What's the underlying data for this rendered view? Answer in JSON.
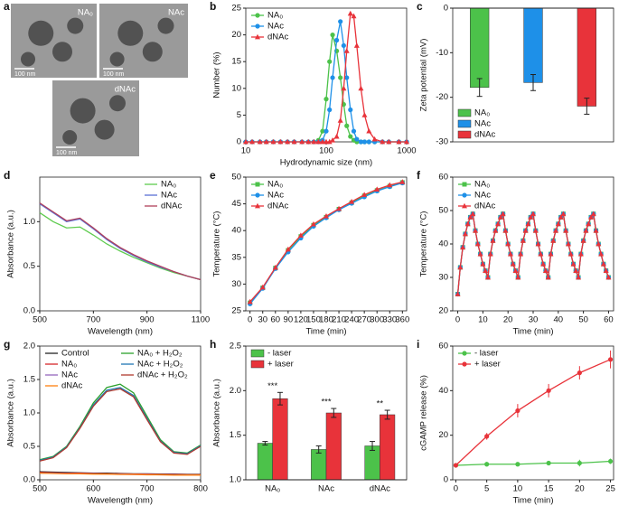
{
  "chart_data": [
    {
      "type": "image",
      "panel": "a",
      "images": [
        {
          "label": "NA₀",
          "scale": "100 nm"
        },
        {
          "label": "NAc",
          "scale": "100 nm"
        },
        {
          "label": "dNAc",
          "scale": "100 nm"
        }
      ]
    },
    {
      "type": "line",
      "panel": "b",
      "xlabel": "Hydrodynamic size (nm)",
      "ylabel": "Number (%)",
      "xlog": true,
      "xlim": [
        10,
        1000
      ],
      "xticks": [
        10,
        100,
        1000
      ],
      "ylim": [
        0,
        25
      ],
      "yticks": [
        0,
        5,
        10,
        15,
        20,
        25
      ],
      "legend": "upper left",
      "x": [
        10,
        12,
        15,
        18,
        22,
        27,
        33,
        40,
        50,
        60,
        70,
        80,
        90,
        100,
        110,
        120,
        135,
        150,
        165,
        180,
        200,
        220,
        240,
        270,
        300,
        340,
        400,
        500,
        600,
        800,
        1000
      ],
      "series": [
        {
          "name": "NA₀",
          "color": "#4cc24a",
          "marker": "circle",
          "values": [
            0,
            0,
            0,
            0,
            0,
            0,
            0,
            0,
            0,
            0,
            0,
            0.3,
            2,
            8,
            15,
            20,
            17,
            12,
            7,
            3,
            1,
            0.3,
            0,
            0,
            0,
            0,
            0,
            0,
            0,
            0,
            0
          ]
        },
        {
          "name": "NAc",
          "color": "#1e90e8",
          "marker": "circle",
          "values": [
            0,
            0,
            0,
            0,
            0,
            0,
            0,
            0,
            0,
            0,
            0,
            0,
            0.3,
            2,
            6,
            12,
            19,
            22.5,
            18,
            12,
            6,
            2,
            0.5,
            0,
            0,
            0,
            0,
            0,
            0,
            0,
            0
          ]
        },
        {
          "name": "dNAc",
          "color": "#e8333a",
          "marker": "triangle",
          "values": [
            0,
            0,
            0,
            0,
            0,
            0,
            0,
            0,
            0,
            0,
            0,
            0,
            0,
            0,
            0,
            0.3,
            1,
            4,
            10,
            17,
            24,
            23.5,
            18,
            10,
            5,
            2,
            0.5,
            0,
            0,
            0,
            0
          ]
        }
      ]
    },
    {
      "type": "bar",
      "panel": "c",
      "ylabel": "Zeta potential (mV)",
      "ylim": [
        -30,
        0
      ],
      "yticks": [
        -30,
        -20,
        -10,
        0
      ],
      "legend": "lower left",
      "series": [
        {
          "name": "NA₀",
          "color": "#4cc24a",
          "values": [
            -17.8
          ],
          "errors": [
            2
          ]
        },
        {
          "name": "NAc",
          "color": "#1e90e8",
          "values": [
            -16.7
          ],
          "errors": [
            1.8
          ]
        },
        {
          "name": "dNAc",
          "color": "#e8333a",
          "values": [
            -22
          ],
          "errors": [
            1.8
          ]
        }
      ]
    },
    {
      "type": "line",
      "panel": "d",
      "xlabel": "Wavelength (nm)",
      "ylabel": "Absorbance (a.u.)",
      "xlim": [
        500,
        1100
      ],
      "xticks": [
        500,
        700,
        900,
        1100
      ],
      "ylim": [
        0,
        1.5
      ],
      "yticks": [
        {
          "value": 0,
          "label": "0.0"
        },
        {
          "value": 0.5,
          "label": "0.5"
        },
        {
          "value": 1,
          "label": "1.0"
        }
      ],
      "legend": "upper right",
      "x": [
        500,
        550,
        600,
        650,
        700,
        750,
        800,
        850,
        900,
        950,
        1000,
        1050,
        1100
      ],
      "series": [
        {
          "name": "NA₀",
          "color": "#5ecb4e",
          "values": [
            1.1,
            1.0,
            0.93,
            0.94,
            0.85,
            0.75,
            0.67,
            0.6,
            0.54,
            0.48,
            0.43,
            0.39,
            0.35
          ]
        },
        {
          "name": "NAc",
          "color": "#5b6fd6",
          "values": [
            1.2,
            1.1,
            1.0,
            1.03,
            0.92,
            0.8,
            0.7,
            0.62,
            0.55,
            0.49,
            0.44,
            0.39,
            0.35
          ]
        },
        {
          "name": "dNAc",
          "color": "#b0405a",
          "values": [
            1.21,
            1.11,
            1.01,
            1.04,
            0.93,
            0.81,
            0.71,
            0.63,
            0.56,
            0.5,
            0.44,
            0.39,
            0.35
          ]
        }
      ]
    },
    {
      "type": "line",
      "panel": "e",
      "xlabel": "Time (min)",
      "ylabel": "Temperature (°C)",
      "xlim": [
        -10,
        370
      ],
      "xticks": [
        0,
        30,
        60,
        90,
        120,
        150,
        180,
        210,
        240,
        270,
        300,
        330,
        360
      ],
      "ylim": [
        25,
        50
      ],
      "yticks": [
        25,
        30,
        35,
        40,
        45,
        50
      ],
      "legend": "upper left",
      "x": [
        0,
        30,
        60,
        90,
        120,
        150,
        180,
        210,
        240,
        270,
        300,
        330,
        360
      ],
      "series": [
        {
          "name": "NA₀",
          "color": "#4cc24a",
          "marker": "square",
          "values": [
            26.5,
            29.3,
            33,
            36.3,
            38.9,
            41,
            42.5,
            44,
            45.2,
            46.5,
            47.5,
            48.3,
            49
          ]
        },
        {
          "name": "NAc",
          "color": "#1e90e8",
          "marker": "circle",
          "values": [
            26.3,
            29.2,
            32.9,
            36,
            38.6,
            40.8,
            42.4,
            43.9,
            45.1,
            46.3,
            47.4,
            48.2,
            48.9
          ]
        },
        {
          "name": "dNAc",
          "color": "#e8333a",
          "marker": "triangle",
          "values": [
            26.7,
            29.4,
            33.1,
            36.5,
            39.1,
            41.2,
            42.7,
            44.1,
            45.4,
            46.7,
            47.7,
            48.5,
            49.1
          ]
        }
      ]
    },
    {
      "type": "line",
      "panel": "f",
      "xlabel": "Time (min)",
      "ylabel": "Temperature (°C)",
      "xlim": [
        -2,
        62
      ],
      "xticks": [
        0,
        10,
        20,
        30,
        40,
        50,
        60
      ],
      "ylim": [
        20,
        60
      ],
      "yticks": [
        20,
        30,
        40,
        50,
        60
      ],
      "legend": "upper left",
      "x": [
        0,
        1,
        2,
        3,
        4,
        5,
        6,
        7,
        8,
        9,
        10,
        11,
        12,
        13,
        14,
        15,
        16,
        17,
        18,
        19,
        20,
        21,
        22,
        23,
        24,
        25,
        26,
        27,
        28,
        29,
        30,
        31,
        32,
        33,
        34,
        35,
        36,
        37,
        38,
        39,
        40,
        41,
        42,
        43,
        44,
        45,
        46,
        47,
        48,
        49,
        50,
        51,
        52,
        53,
        54,
        55,
        56,
        57,
        58,
        59,
        60
      ],
      "series": [
        {
          "name": "NA₀",
          "color": "#4cc24a",
          "marker": "square",
          "values": [
            25,
            33,
            39,
            43,
            46,
            48,
            49,
            44,
            40,
            37,
            34,
            32,
            30,
            37,
            41,
            44,
            46,
            48,
            49,
            44,
            40,
            37,
            34,
            32,
            30,
            37,
            41,
            44,
            46,
            48,
            49,
            44,
            40,
            37,
            34,
            32,
            30,
            37,
            41,
            44,
            46,
            48,
            49,
            44,
            40,
            37,
            34,
            32,
            30,
            37,
            41,
            44,
            46,
            48,
            49,
            44,
            40,
            37,
            34,
            32,
            30
          ]
        },
        {
          "name": "NAc",
          "color": "#1e90e8",
          "marker": "circle",
          "values": [
            25,
            33,
            39,
            43,
            46,
            48,
            49,
            44,
            40,
            37,
            34,
            32,
            30,
            37,
            41,
            44,
            46,
            48,
            49,
            44,
            40,
            37,
            34,
            32,
            30,
            37,
            41,
            44,
            46,
            48,
            49,
            44,
            40,
            37,
            34,
            32,
            30,
            37,
            41,
            44,
            46,
            48,
            49,
            44,
            40,
            37,
            34,
            32,
            30,
            37,
            41,
            44,
            46,
            48,
            49,
            44,
            40,
            37,
            34,
            32,
            30
          ]
        },
        {
          "name": "dNAc",
          "color": "#e8333a",
          "marker": "triangle",
          "values": [
            25,
            33,
            39,
            43,
            46,
            48,
            49,
            44,
            40,
            37,
            34,
            32,
            30,
            37,
            41,
            44,
            46,
            48,
            49,
            44,
            40,
            37,
            34,
            32,
            30,
            37,
            41,
            44,
            46,
            48,
            49,
            44,
            40,
            37,
            34,
            32,
            30,
            37,
            41,
            44,
            46,
            48,
            49,
            44,
            40,
            37,
            34,
            32,
            30,
            37,
            41,
            44,
            46,
            48,
            49,
            44,
            40,
            37,
            34,
            32,
            30
          ]
        }
      ]
    },
    {
      "type": "line",
      "panel": "g",
      "xlabel": "Wavelength (nm)",
      "ylabel": "Absorbance (a.u.)",
      "xlim": [
        500,
        800
      ],
      "xticks": [
        500,
        600,
        700,
        800
      ],
      "ylim": [
        0,
        2
      ],
      "yticks": [
        {
          "value": 0,
          "label": "0.0"
        },
        {
          "value": 0.5,
          "label": "0.5"
        },
        {
          "value": 1,
          "label": "1.0"
        },
        {
          "value": 1.5,
          "label": "1.5"
        },
        {
          "value": 2,
          "label": "2.0"
        }
      ],
      "legend": "upper left",
      "x": [
        500,
        525,
        550,
        575,
        600,
        625,
        650,
        675,
        700,
        725,
        750,
        775,
        800
      ],
      "series": [
        {
          "name": "Control",
          "color": "#222222",
          "values": [
            0.12,
            0.115,
            0.11,
            0.105,
            0.1,
            0.1,
            0.095,
            0.09,
            0.09,
            0.085,
            0.085,
            0.08,
            0.08
          ]
        },
        {
          "name": "NA₀",
          "color": "#d62728",
          "values": [
            0.11,
            0.105,
            0.1,
            0.1,
            0.095,
            0.09,
            0.09,
            0.085,
            0.085,
            0.08,
            0.08,
            0.075,
            0.075
          ]
        },
        {
          "name": "NAc",
          "color": "#9467bd",
          "values": [
            0.1,
            0.1,
            0.095,
            0.09,
            0.09,
            0.085,
            0.085,
            0.08,
            0.08,
            0.075,
            0.075,
            0.07,
            0.07
          ]
        },
        {
          "name": "dNAc",
          "color": "#ff7f0e",
          "values": [
            0.1,
            0.095,
            0.09,
            0.09,
            0.085,
            0.085,
            0.08,
            0.08,
            0.075,
            0.075,
            0.07,
            0.07,
            0.07
          ]
        },
        {
          "name": "NA₀ + H₂O₂",
          "color": "#2ca02c",
          "values": [
            0.3,
            0.35,
            0.5,
            0.8,
            1.15,
            1.38,
            1.43,
            1.3,
            0.95,
            0.6,
            0.42,
            0.4,
            0.52
          ]
        },
        {
          "name": "NAc + H₂O₂",
          "color": "#1f77b4",
          "values": [
            0.29,
            0.34,
            0.49,
            0.78,
            1.12,
            1.34,
            1.38,
            1.26,
            0.92,
            0.58,
            0.41,
            0.39,
            0.51
          ]
        },
        {
          "name": "dNAc + H₂O₂",
          "color": "#b03a2e",
          "values": [
            0.28,
            0.33,
            0.48,
            0.77,
            1.1,
            1.32,
            1.36,
            1.24,
            0.9,
            0.57,
            0.4,
            0.38,
            0.5
          ]
        }
      ]
    },
    {
      "type": "bar",
      "panel": "h",
      "ylabel": "Absorbance (a.u.)",
      "categories": [
        "NA₀",
        "NAc",
        "dNAc"
      ],
      "ylim": [
        1,
        2.5
      ],
      "yticks": [
        {
          "value": 1,
          "label": "1.0"
        },
        {
          "value": 1.5,
          "label": "1.5"
        },
        {
          "value": 2,
          "label": "2.0"
        },
        {
          "value": 2.5,
          "label": "2.5"
        }
      ],
      "legend": "upper left",
      "annotations": [
        "***",
        "***",
        "**"
      ],
      "series": [
        {
          "name": "- laser",
          "color": "#4cc24a",
          "values": [
            1.41,
            1.34,
            1.38
          ],
          "errors": [
            0.02,
            0.04,
            0.05
          ]
        },
        {
          "name": "+ laser",
          "color": "#e8333a",
          "values": [
            1.91,
            1.75,
            1.73
          ],
          "errors": [
            0.07,
            0.05,
            0.05
          ]
        }
      ]
    },
    {
      "type": "line",
      "panel": "i",
      "xlabel": "Time (min)",
      "ylabel": "cGAMP release (%)",
      "xlim": [
        -0.5,
        25.5
      ],
      "xticks": [
        0,
        5,
        10,
        15,
        20,
        25
      ],
      "ylim": [
        0,
        60
      ],
      "yticks": [
        0,
        20,
        40,
        60
      ],
      "legend": "upper left",
      "x": [
        0,
        5,
        10,
        15,
        20,
        25
      ],
      "series": [
        {
          "name": "- laser",
          "color": "#4cc24a",
          "marker": "circle",
          "values": [
            6.5,
            7,
            7,
            7.5,
            7.5,
            8.3
          ],
          "errors": [
            1,
            1,
            0.8,
            1,
            1.5,
            1.2
          ]
        },
        {
          "name": "+ laser",
          "color": "#e8333a",
          "marker": "circle",
          "values": [
            6.5,
            19.5,
            31,
            40,
            48,
            54
          ],
          "errors": [
            1,
            1.5,
            3,
            3,
            3,
            4
          ]
        }
      ]
    }
  ]
}
